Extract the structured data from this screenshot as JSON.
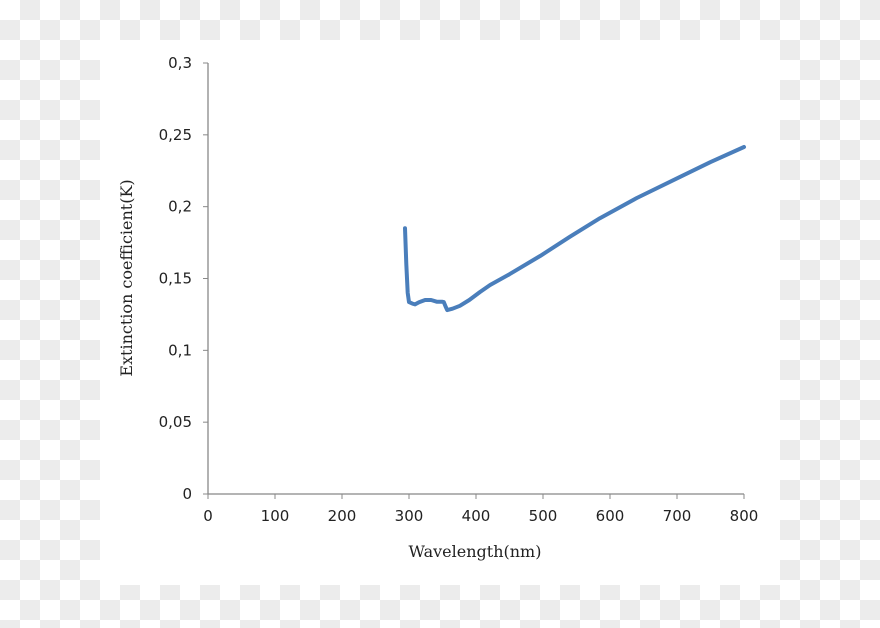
{
  "chart_data": {
    "type": "line",
    "title": "",
    "xlabel": "Wavelength(nm)",
    "ylabel": "Extinction coefficient(K)",
    "xlim": [
      0,
      800
    ],
    "ylim": [
      0,
      0.3
    ],
    "xticks": [
      "0",
      "100",
      "200",
      "300",
      "400",
      "500",
      "600",
      "700",
      "800"
    ],
    "yticks": [
      "0",
      "0,05",
      "0,1",
      "0,15",
      "0,2",
      "0,25",
      "0,3"
    ],
    "grid": false,
    "series": [
      {
        "color": "#4a7ebb",
        "x": [
          294,
          296,
          298,
          300,
          305,
          309,
          315,
          324,
          333,
          342,
          350,
          352,
          355,
          357,
          365,
          376,
          390,
          406,
          421,
          450,
          496,
          540,
          585,
          640,
          704,
          750,
          800
        ],
        "y": [
          0.185,
          0.16,
          0.14,
          0.1336,
          0.1325,
          0.132,
          0.1335,
          0.135,
          0.135,
          0.1338,
          0.1338,
          0.1336,
          0.13,
          0.128,
          0.129,
          0.131,
          0.135,
          0.1406,
          0.1455,
          0.153,
          0.1657,
          0.179,
          0.192,
          0.206,
          0.2206,
          0.231,
          0.2415
        ]
      }
    ]
  }
}
